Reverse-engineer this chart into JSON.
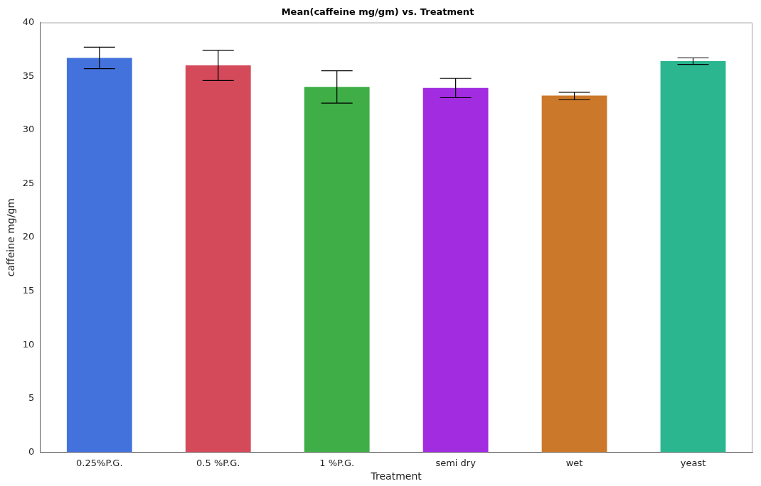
{
  "chart_data": {
    "type": "bar",
    "title": "Mean(caffeine mg/gm) vs. Treatment",
    "xlabel": "Treatment",
    "ylabel": "caffeine mg/gm",
    "categories": [
      "0.25%P.G.",
      "0.5 %P.G.",
      "1 %P.G.",
      "semi dry",
      "wet",
      "yeast"
    ],
    "values": [
      36.7,
      36.0,
      34.0,
      33.9,
      33.2,
      36.4
    ],
    "errors": [
      [
        35.7,
        37.7
      ],
      [
        34.6,
        37.4
      ],
      [
        32.5,
        35.5
      ],
      [
        33.0,
        34.8
      ],
      [
        32.8,
        33.5
      ],
      [
        36.1,
        36.7
      ]
    ],
    "colors": [
      "#4472dd",
      "#d44a5a",
      "#3fae47",
      "#a12ce0",
      "#cb782a",
      "#2bb690"
    ],
    "ylim": [
      0,
      40
    ],
    "yticks": [
      0,
      5,
      10,
      15,
      20,
      25,
      30,
      35,
      40
    ],
    "grid": false,
    "legend": false
  }
}
